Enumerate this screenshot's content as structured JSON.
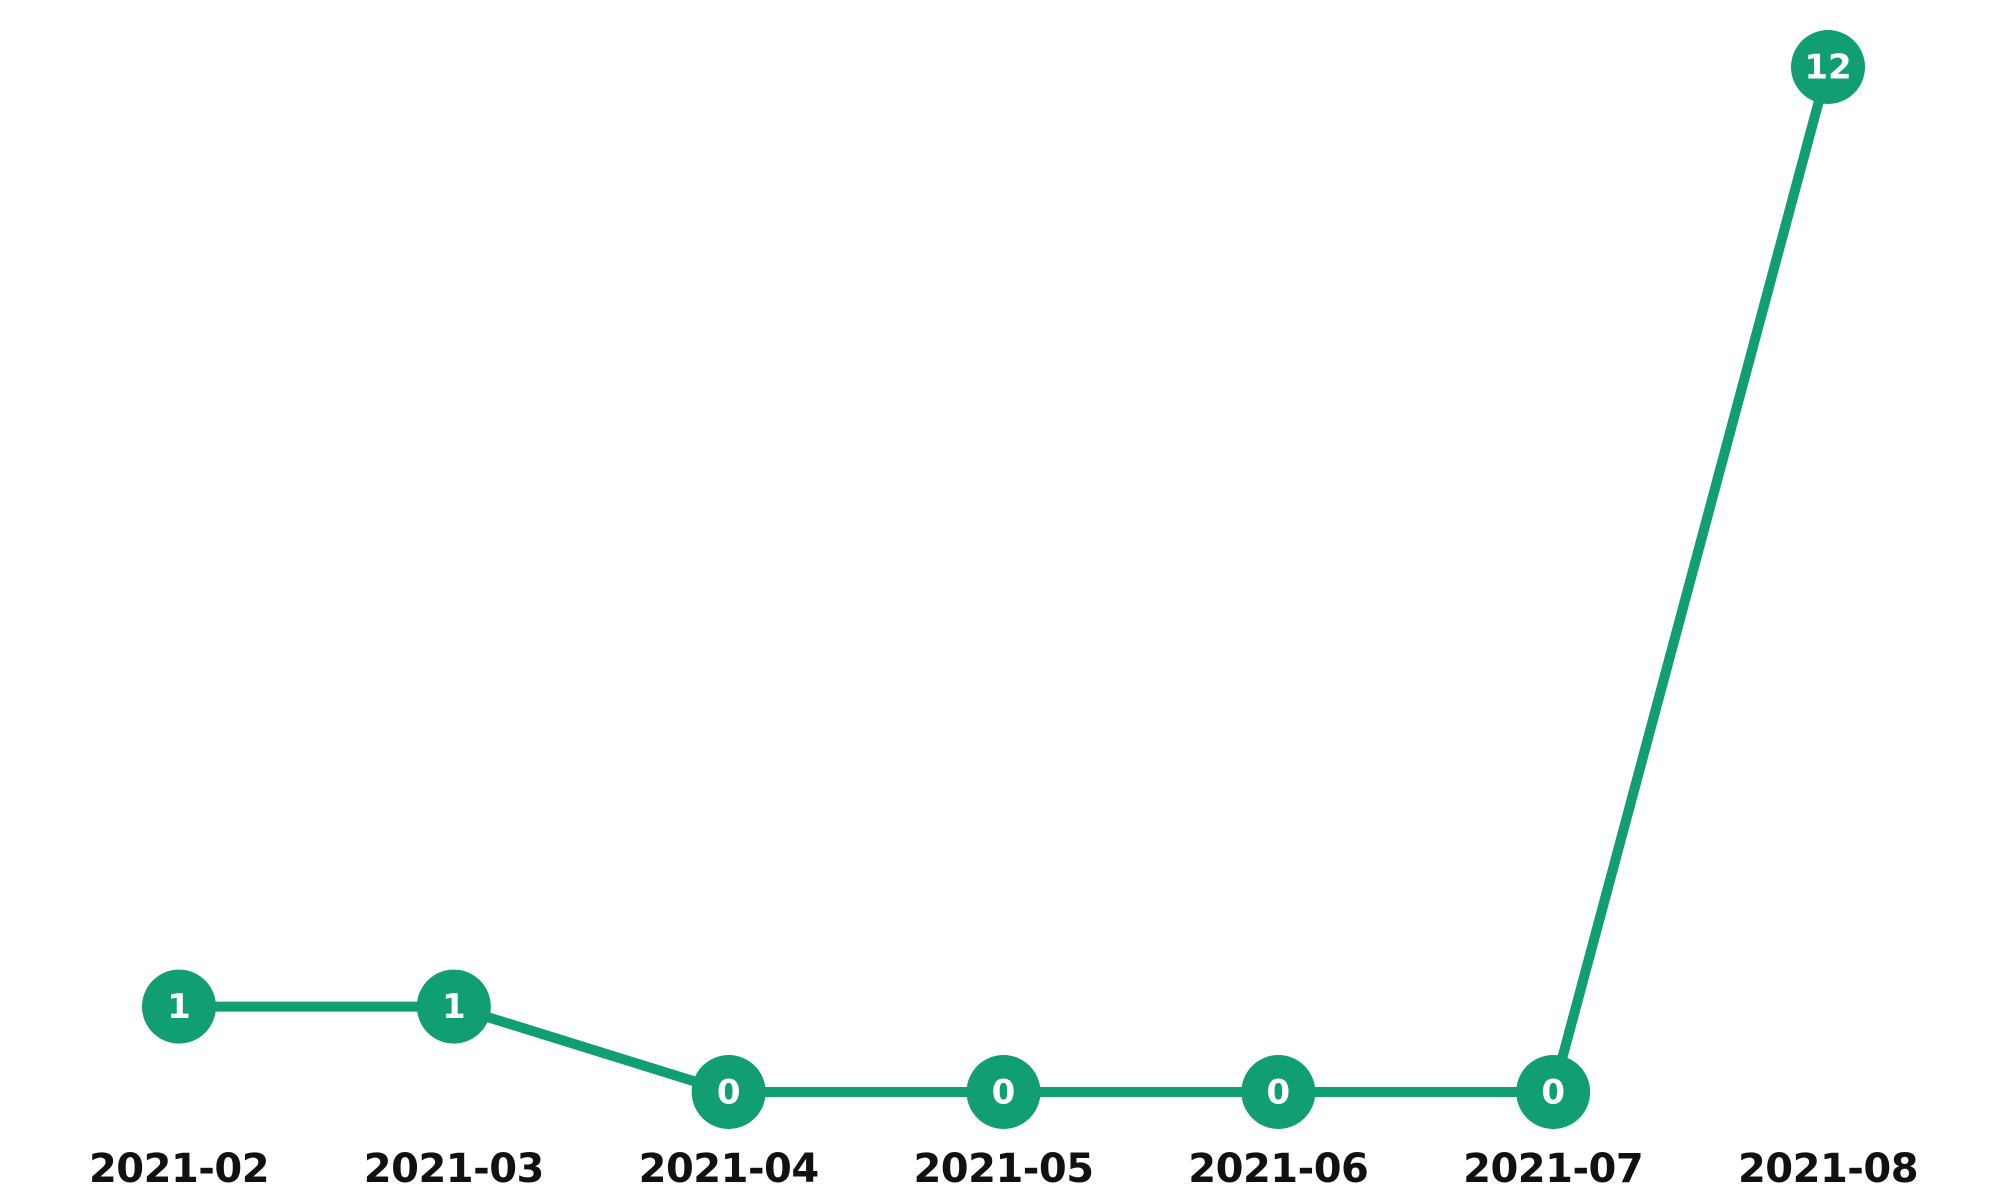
{
  "chart_data": {
    "type": "line",
    "categories": [
      "2021-02",
      "2021-03",
      "2021-04",
      "2021-05",
      "2021-06",
      "2021-07",
      "2021-08"
    ],
    "values": [
      1,
      1,
      0,
      0,
      0,
      0,
      12
    ],
    "color": "#109e72"
  }
}
